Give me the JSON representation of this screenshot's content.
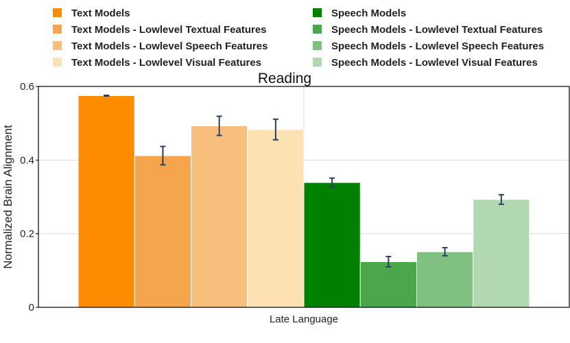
{
  "chart_data": {
    "type": "bar",
    "title": "Reading",
    "xlabel": "Late Language",
    "ylabel": "Normalized Brain Alignment",
    "ylim": [
      0,
      0.6
    ],
    "yticks": [
      {
        "value": 0,
        "label": "0"
      },
      {
        "value": 0.2,
        "label": "0.2"
      },
      {
        "value": 0.4,
        "label": "0.4"
      },
      {
        "value": 0.6,
        "label": "0.6"
      }
    ],
    "grid": true,
    "legend_position": "top",
    "categories": [
      "Late Language"
    ],
    "series": [
      {
        "name": "Text Models",
        "values": [
          0.575
        ],
        "error": [
          0.001
        ],
        "color": "#ff8c00"
      },
      {
        "name": "Text Models - Lowlevel Textual Features",
        "values": [
          0.412
        ],
        "error": [
          0.025
        ],
        "color": "#f5a54b"
      },
      {
        "name": "Text Models - Lowlevel Speech Features",
        "values": [
          0.493
        ],
        "error": [
          0.026
        ],
        "color": "#f7be7c"
      },
      {
        "name": "Text Models - Lowlevel Visual Features",
        "values": [
          0.483
        ],
        "error": [
          0.028
        ],
        "color": "#fde1b3"
      },
      {
        "name": "Speech Models",
        "values": [
          0.339
        ],
        "error": [
          0.012
        ],
        "color": "#008000"
      },
      {
        "name": "Speech Models - Lowlevel Textual Features",
        "values": [
          0.124
        ],
        "error": [
          0.014
        ],
        "color": "#4ca64c"
      },
      {
        "name": "Speech Models - Lowlevel Speech Features",
        "values": [
          0.151
        ],
        "error": [
          0.011
        ],
        "color": "#80c080"
      },
      {
        "name": "Speech Models - Lowlevel Visual Features",
        "values": [
          0.293
        ],
        "error": [
          0.013
        ],
        "color": "#b2d8b2"
      }
    ]
  }
}
